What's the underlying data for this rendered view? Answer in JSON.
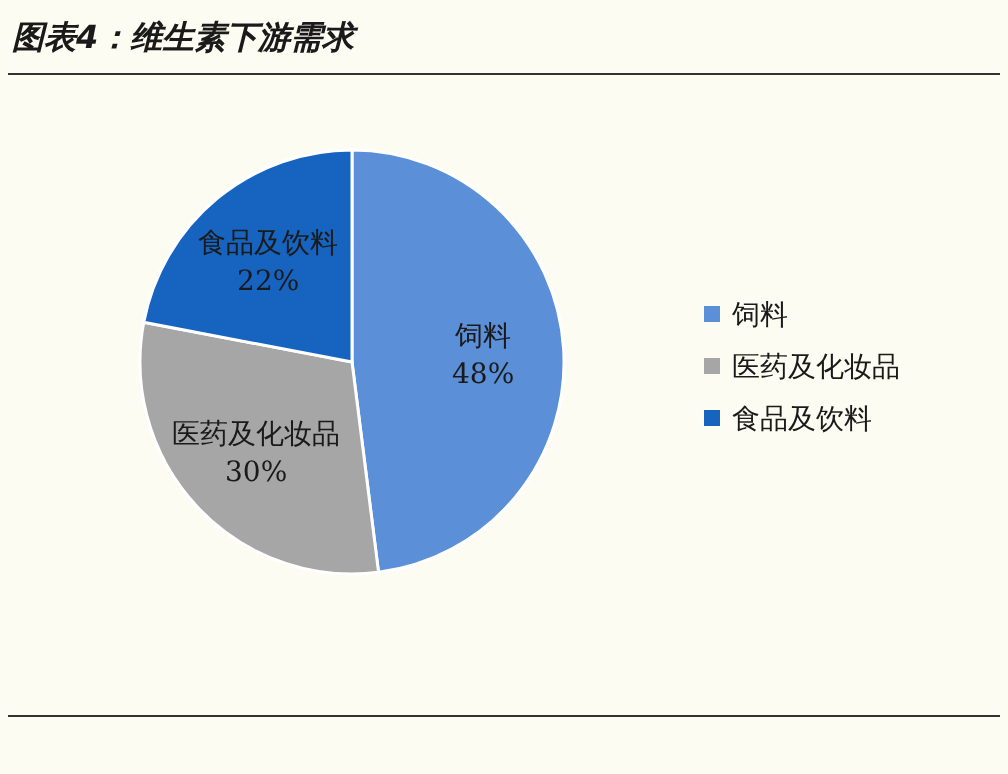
{
  "chart_data": {
    "type": "pie",
    "title": "图表4：维生素下游需求",
    "categories": [
      "饲料",
      "医药及化妆品",
      "食品及饮料"
    ],
    "values": [
      48,
      30,
      22
    ],
    "colors": [
      "#5b8fd8",
      "#a6a6a6",
      "#1664c0"
    ],
    "value_labels": [
      "48%",
      "30%",
      "22%"
    ],
    "legend": "right"
  }
}
